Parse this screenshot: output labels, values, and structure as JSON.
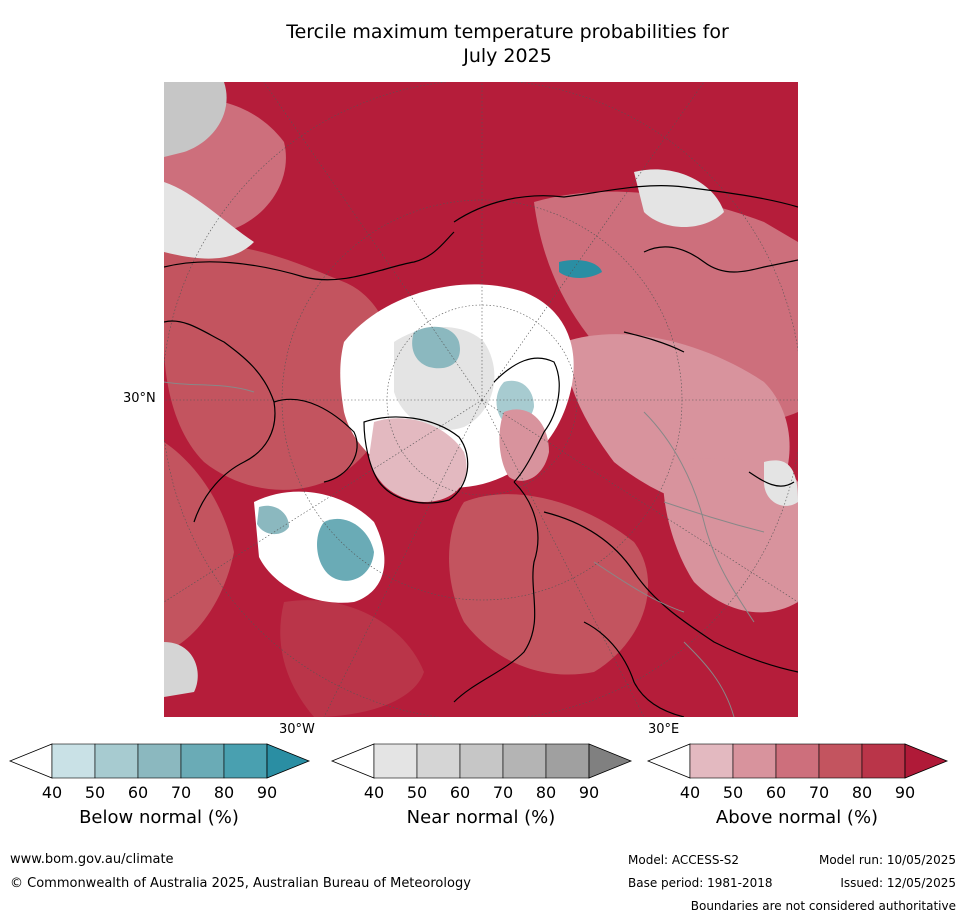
{
  "title": {
    "line1": "Tercile maximum temperature probabilities for",
    "line2": "July 2025"
  },
  "map": {
    "lat_label": "30°N",
    "lon_west_label": "30°W",
    "lon_east_label": "30°E"
  },
  "legends": [
    {
      "label": "Below normal (%)",
      "ticks": [
        "40",
        "50",
        "60",
        "70",
        "80",
        "90"
      ],
      "colors": [
        "#ffffff",
        "#c9e1e6",
        "#a7cbd0",
        "#8bb8bf",
        "#6aabb6",
        "#49a0b0",
        "#2a8ea3"
      ]
    },
    {
      "label": "Near normal (%)",
      "ticks": [
        "40",
        "50",
        "60",
        "70",
        "80",
        "90"
      ],
      "colors": [
        "#ffffff",
        "#e4e4e4",
        "#d5d5d5",
        "#c6c6c6",
        "#b4b4b4",
        "#a0a0a0",
        "#808080"
      ]
    },
    {
      "label": "Above normal (%)",
      "ticks": [
        "40",
        "50",
        "60",
        "70",
        "80",
        "90"
      ],
      "colors": [
        "#ffffff",
        "#e3b9c0",
        "#d8939d",
        "#cd6f7c",
        "#c3545f",
        "#ba3549",
        "#b01a38"
      ]
    }
  ],
  "footer": {
    "website": "www.bom.gov.au/climate",
    "copyright": "© Commonwealth of Australia 2025, Australian Bureau of Meteorology",
    "model": "Model: ACCESS-S2",
    "base_period": "Base period: 1981-2018",
    "model_run": "Model run: 10/05/2025",
    "issued": "Issued: 12/05/2025",
    "disclaimer": "Boundaries are not considered authoritative"
  }
}
